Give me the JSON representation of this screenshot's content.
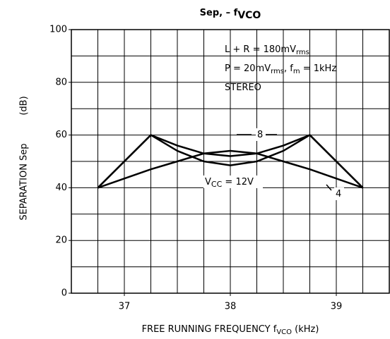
{
  "chart_data": {
    "type": "line",
    "title": [
      "Sep,  –  f",
      "VCO"
    ],
    "annotations": [
      [
        "L + R = 180mV",
        "rms"
      ],
      [
        "P = 20mV",
        "rms",
        ", f",
        "m",
        " = 1kHz"
      ],
      [
        "STEREO"
      ]
    ],
    "ylabel": "SEPARATION Sep",
    "ylabel_unit": "(dB)",
    "xlabel": [
      "FREE RUNNING FREQUENCY   f",
      "VCO",
      "   (kHz)"
    ],
    "xlim": [
      36.5,
      39.5
    ],
    "ylim": [
      0,
      100
    ],
    "xticks": [
      37,
      38,
      39
    ],
    "yticks": [
      0,
      20,
      40,
      60,
      80,
      100
    ],
    "grid": true,
    "xgrid_step": 0.25,
    "ygrid_step": 10,
    "series": [
      {
        "name": [
          "V",
          "CC",
          " = 12V"
        ],
        "color": "#000000",
        "x": [
          36.75,
          37.25,
          37.5,
          37.75,
          38,
          38.25,
          38.5,
          38.75,
          39.25
        ],
        "values": [
          40,
          60,
          54,
          50,
          48.5,
          50,
          54,
          60,
          40
        ]
      },
      {
        "name": [
          "8"
        ],
        "color": "#000000",
        "x": [
          36.75,
          37.25,
          37.5,
          37.75,
          38,
          38.25,
          38.5,
          38.75,
          39.25
        ],
        "values": [
          40,
          60,
          56,
          53,
          52,
          53,
          56,
          60,
          40
        ]
      },
      {
        "name": [
          "4"
        ],
        "color": "#000000",
        "x": [
          36.75,
          37.25,
          37.5,
          37.75,
          38,
          38.25,
          38.5,
          38.75,
          39.25
        ],
        "values": [
          40,
          47,
          50,
          53,
          54,
          53,
          50,
          47,
          40
        ]
      }
    ]
  }
}
